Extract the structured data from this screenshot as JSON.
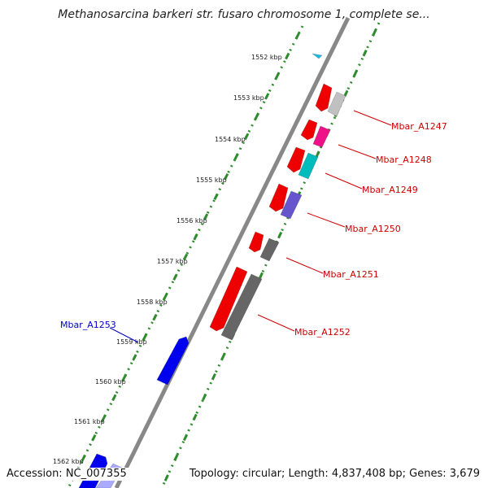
{
  "title": "Methanosarcina barkeri str. fusaro chromosome 1, complete se...",
  "accession": "Accession: NC_007355",
  "summary": "Topology: circular; Length: 4,837,408 bp; Genes: 3,679",
  "colors": {
    "backbone": "#888888",
    "tick_dots": "#2e8b2e",
    "label_red": "#cc0000",
    "label_blue": "#0000cc"
  },
  "kbp_labels": [
    "1552 kbp",
    "1553 kbp",
    "1554 kbp",
    "1555 kbp",
    "1556 kbp",
    "1557 kbp",
    "1558 kbp",
    "1559 kbp",
    "1560 kbp",
    "1561 kbp",
    "1562 kbp"
  ],
  "genes": [
    {
      "label": "Mbar_A1247",
      "label_color": "#cc0000"
    },
    {
      "label": "Mbar_A1248",
      "label_color": "#cc0000"
    },
    {
      "label": "Mbar_A1249",
      "label_color": "#cc0000"
    },
    {
      "label": "Mbar_A1250",
      "label_color": "#cc0000"
    },
    {
      "label": "Mbar_A1251",
      "label_color": "#cc0000"
    },
    {
      "label": "Mbar_A1252",
      "label_color": "#cc0000"
    },
    {
      "label": "Mbar_A1253",
      "label_color": "#0000cc"
    }
  ],
  "features": [
    {
      "name": "Mbar_A1247-forward",
      "color": "#ee0000",
      "icon": "arrow-up"
    },
    {
      "name": "Mbar_A1247-reverse",
      "color": "#c0c0c0",
      "icon": "box"
    },
    {
      "name": "Mbar_A1248-forward",
      "color": "#ee0000",
      "icon": "arrow-up"
    },
    {
      "name": "Mbar_A1248-reverse",
      "color": "#ee1188",
      "icon": "box"
    },
    {
      "name": "Mbar_A1249-forward",
      "color": "#ee0000",
      "icon": "arrow-up"
    },
    {
      "name": "Mbar_A1249-reverse",
      "color": "#00bbbb",
      "icon": "box"
    },
    {
      "name": "Mbar_A1250-forward",
      "color": "#ee0000",
      "icon": "arrow-up"
    },
    {
      "name": "Mbar_A1250-reverse",
      "color": "#6655cc",
      "icon": "box"
    },
    {
      "name": "Mbar_A1251-forward",
      "color": "#ee0000",
      "icon": "arrow-up"
    },
    {
      "name": "Mbar_A1251-reverse",
      "color": "#666666",
      "icon": "box"
    },
    {
      "name": "Mbar_A1252-forward",
      "color": "#ee0000",
      "icon": "arrow-up"
    },
    {
      "name": "Mbar_A1252-reverse",
      "color": "#666666",
      "icon": "box"
    },
    {
      "name": "Mbar_A1253-forward",
      "color": "#0000ee",
      "icon": "arrow-up"
    },
    {
      "name": "Mbar_A1254-forward",
      "color": "#0000ee",
      "icon": "arrow-up"
    },
    {
      "name": "Mbar_A1254-reverse",
      "color": "#aaaaff",
      "icon": "box"
    },
    {
      "name": "small-feature",
      "color": "#22bbdd",
      "icon": "triangle"
    }
  ]
}
